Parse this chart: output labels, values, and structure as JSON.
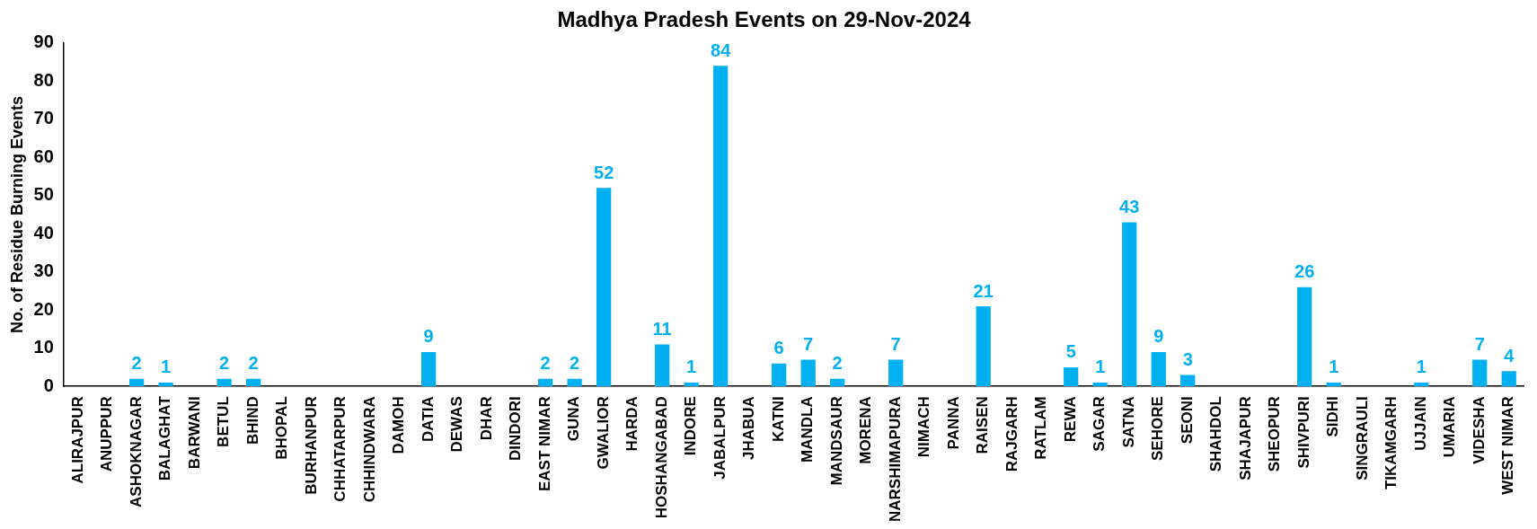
{
  "chart_data": {
    "type": "bar",
    "title": "Madhya Pradesh Events on 29-Nov-2024",
    "ylabel": "No. of Residue Burning Events",
    "categories": [
      "ALIRAJPUR",
      "ANUPPUR",
      "ASHOKNAGAR",
      "BALAGHAT",
      "BARWANI",
      "BETUL",
      "BHIND",
      "BHOPAL",
      "BURHANPUR",
      "CHHATARPUR",
      "CHHINDWARA",
      "DAMOH",
      "DATIA",
      "DEWAS",
      "DHAR",
      "DINDORI",
      "EAST NIMAR",
      "GUNA",
      "GWALIOR",
      "HARDA",
      "HOSHANGABAD",
      "INDORE",
      "JABALPUR",
      "JHABUA",
      "KATNI",
      "MANDLA",
      "MANDSAUR",
      "MORENA",
      "NARSHIMAPURA",
      "NIMACH",
      "PANNA",
      "RAISEN",
      "RAJGARH",
      "RATLAM",
      "REWA",
      "SAGAR",
      "SATNA",
      "SEHORE",
      "SEONI",
      "SHAHDOL",
      "SHAJAPUR",
      "SHEOPUR",
      "SHIVPURI",
      "SIDHI",
      "SINGRAULI",
      "TIKAMGARH",
      "UJJAIN",
      "UMARIA",
      "VIDESHA",
      "WEST NIMAR"
    ],
    "values": [
      0,
      0,
      2,
      1,
      0,
      2,
      2,
      0,
      0,
      0,
      0,
      0,
      9,
      0,
      0,
      0,
      2,
      2,
      52,
      0,
      11,
      1,
      84,
      0,
      6,
      7,
      2,
      0,
      7,
      0,
      0,
      21,
      0,
      0,
      5,
      1,
      43,
      9,
      3,
      0,
      0,
      0,
      26,
      1,
      0,
      0,
      1,
      0,
      7,
      4
    ],
    "value_labels": [
      null,
      null,
      "2",
      "1",
      null,
      "2",
      "2",
      null,
      null,
      null,
      null,
      null,
      "9",
      null,
      null,
      null,
      "2",
      "2",
      "52",
      null,
      "11",
      "1",
      "84",
      null,
      "6",
      "7",
      "2",
      null,
      "7",
      null,
      null,
      "21",
      null,
      null,
      "5",
      "1",
      "43",
      "9",
      "3",
      null,
      null,
      null,
      "26",
      "1",
      null,
      null,
      "1",
      null,
      "7",
      "4"
    ],
    "color": "#00b0f0",
    "ylim": [
      0,
      90
    ],
    "yticks": [
      0,
      10,
      20,
      30,
      40,
      50,
      60,
      70,
      80,
      90
    ],
    "grid": false,
    "legend": false
  }
}
